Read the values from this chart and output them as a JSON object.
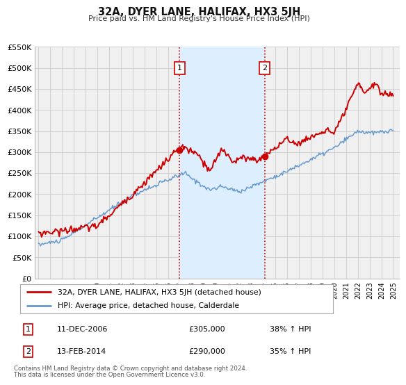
{
  "title": "32A, DYER LANE, HALIFAX, HX3 5JH",
  "subtitle": "Price paid vs. HM Land Registry's House Price Index (HPI)",
  "ylim": [
    0,
    550000
  ],
  "yticks": [
    0,
    50000,
    100000,
    150000,
    200000,
    250000,
    300000,
    350000,
    400000,
    450000,
    500000,
    550000
  ],
  "ytick_labels": [
    "£0",
    "£50K",
    "£100K",
    "£150K",
    "£200K",
    "£250K",
    "£300K",
    "£350K",
    "£400K",
    "£450K",
    "£500K",
    "£550K"
  ],
  "xlim_start": 1994.7,
  "xlim_end": 2025.5,
  "xticks": [
    1995,
    1996,
    1997,
    1998,
    1999,
    2000,
    2001,
    2002,
    2003,
    2004,
    2005,
    2006,
    2007,
    2008,
    2009,
    2010,
    2011,
    2012,
    2013,
    2014,
    2015,
    2016,
    2017,
    2018,
    2019,
    2020,
    2021,
    2022,
    2023,
    2024,
    2025
  ],
  "red_color": "#cc0000",
  "blue_color": "#6699cc",
  "grid_color": "#cccccc",
  "background_color": "#ffffff",
  "chart_bg_color": "#f0f0f0",
  "highlight_bg": "#ddeeff",
  "sale1_x": 2006.95,
  "sale1_y": 305000,
  "sale1_label": "1",
  "sale1_date": "11-DEC-2006",
  "sale1_price": "£305,000",
  "sale1_hpi": "38% ↑ HPI",
  "sale2_x": 2014.12,
  "sale2_y": 290000,
  "sale2_label": "2",
  "sale2_date": "13-FEB-2014",
  "sale2_price": "£290,000",
  "sale2_hpi": "35% ↑ HPI",
  "legend_line1": "32A, DYER LANE, HALIFAX, HX3 5JH (detached house)",
  "legend_line2": "HPI: Average price, detached house, Calderdale",
  "footnote1": "Contains HM Land Registry data © Crown copyright and database right 2024.",
  "footnote2": "This data is licensed under the Open Government Licence v3.0."
}
